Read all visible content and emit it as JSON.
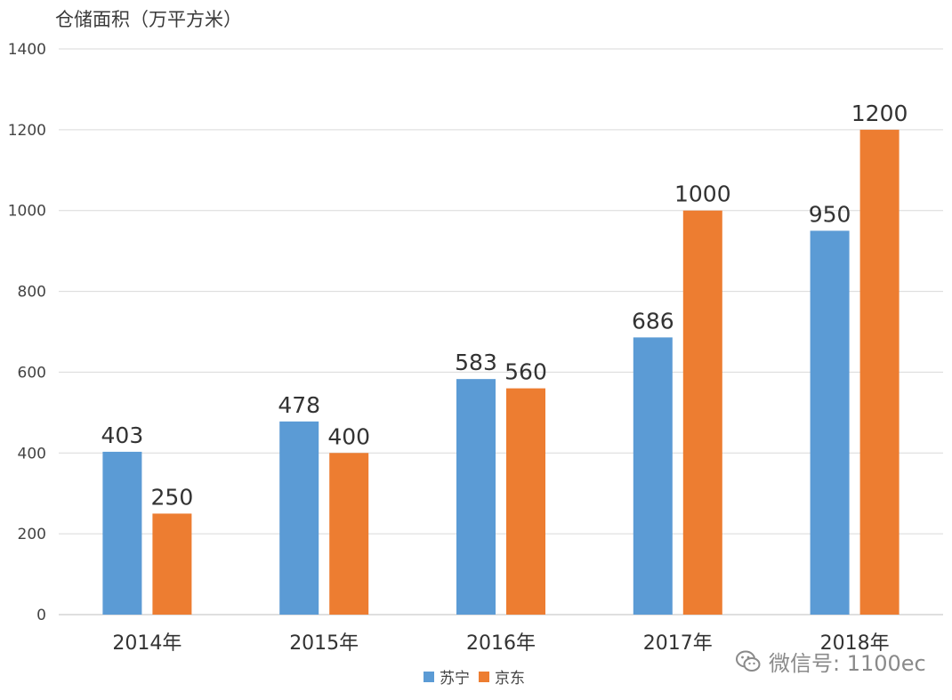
{
  "chart_data": {
    "type": "bar",
    "ylabel": "仓储面积（万平方米）",
    "categories": [
      "2014年",
      "2015年",
      "2016年",
      "2017年",
      "2018年"
    ],
    "series": [
      {
        "name": "苏宁",
        "color": "#5b9bd5",
        "values": [
          403,
          478,
          583,
          686,
          950
        ]
      },
      {
        "name": "京东",
        "color": "#ed7d31",
        "values": [
          250,
          400,
          560,
          1000,
          1200
        ]
      }
    ],
    "ylim": [
      0,
      1400
    ],
    "yticks": [
      "0",
      "200",
      "400",
      "600",
      "800",
      "1000",
      "1200",
      "1400"
    ],
    "grid": true,
    "legend_position": "bottom"
  },
  "watermark": {
    "text": "微信号: 1100ec",
    "icon": "wechat-icon"
  }
}
